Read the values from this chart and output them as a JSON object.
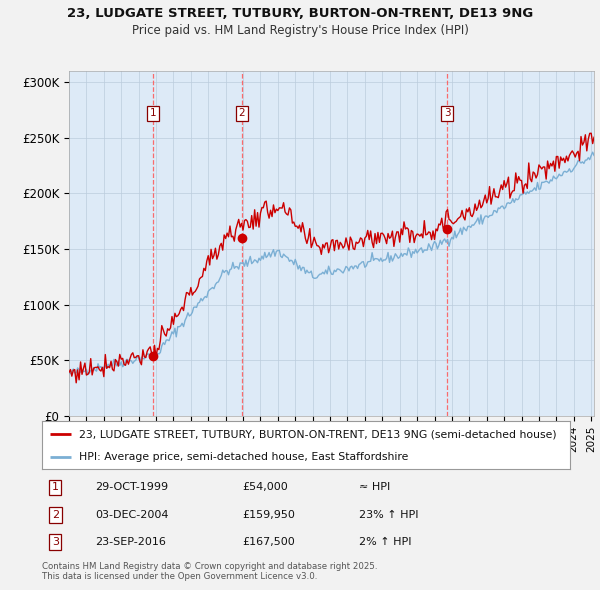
{
  "title": "23, LUDGATE STREET, TUTBURY, BURTON-ON-TRENT, DE13 9NG",
  "subtitle": "Price paid vs. HM Land Registry's House Price Index (HPI)",
  "legend_property": "23, LUDGATE STREET, TUTBURY, BURTON-ON-TRENT, DE13 9NG (semi-detached house)",
  "legend_hpi": "HPI: Average price, semi-detached house, East Staffordshire",
  "sale_dates": [
    "1999-10-29",
    "2004-12-03",
    "2016-09-23"
  ],
  "sale_prices": [
    54000,
    159950,
    167500
  ],
  "sale_labels": [
    "1",
    "2",
    "3"
  ],
  "sale_info": [
    [
      "1",
      "29-OCT-1999",
      "£54,000",
      "≈ HPI"
    ],
    [
      "2",
      "03-DEC-2004",
      "£159,950",
      "23% ↑ HPI"
    ],
    [
      "3",
      "23-SEP-2016",
      "£167,500",
      "2% ↑ HPI"
    ]
  ],
  "property_color": "#cc0000",
  "hpi_color": "#7bafd4",
  "vline_color": "#ff5555",
  "sale_dot_color": "#cc0000",
  "bg_color": "#ddeaf7",
  "fig_bg": "#f2f2f2",
  "grid_color": "#bbccdd",
  "ylim": [
    0,
    310000
  ],
  "yticks": [
    0,
    50000,
    100000,
    150000,
    200000,
    250000,
    300000
  ],
  "ytick_labels": [
    "£0",
    "£50K",
    "£100K",
    "£150K",
    "£200K",
    "£250K",
    "£300K"
  ],
  "copyright_text": "Contains HM Land Registry data © Crown copyright and database right 2025.\nThis data is licensed under the Open Government Licence v3.0.",
  "figsize": [
    6.0,
    5.9
  ],
  "dpi": 100
}
